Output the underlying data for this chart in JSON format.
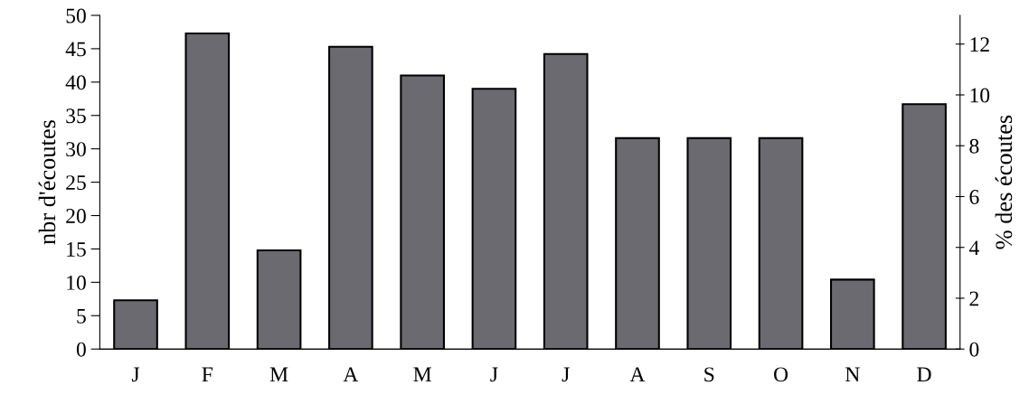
{
  "chart_data": {
    "type": "bar",
    "categories": [
      "J",
      "F",
      "M",
      "A",
      "M",
      "J",
      "J",
      "A",
      "S",
      "O",
      "N",
      "D"
    ],
    "values": [
      7.3,
      47.3,
      14.8,
      45.3,
      41,
      39,
      44.2,
      31.6,
      31.6,
      31.6,
      10.4,
      36.7
    ],
    "color": "#6b6a70",
    "ylabel": "nbr d'écoutes",
    "y2label": "% des écoutes",
    "ylim": [
      0,
      50
    ],
    "yticks": [
      0,
      5,
      10,
      15,
      20,
      25,
      30,
      35,
      40,
      45,
      50
    ],
    "y2lim": [
      0,
      13.13
    ],
    "y2ticks": [
      0,
      2,
      4,
      6,
      8,
      10,
      12
    ],
    "grid": false,
    "legend": false
  }
}
